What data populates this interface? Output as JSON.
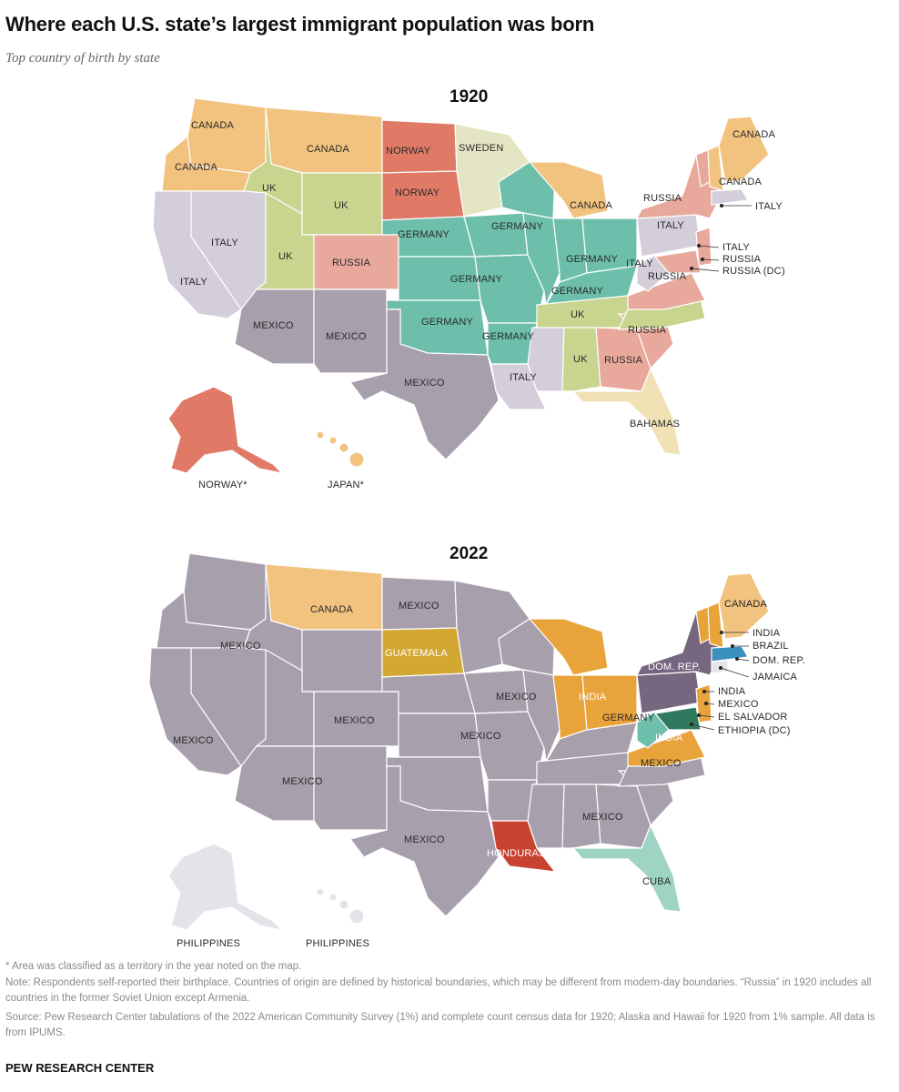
{
  "header": {
    "title": "Where each U.S. state’s largest immigrant population was born",
    "subtitle": "Top country of birth by state"
  },
  "colors": {
    "canada": "#f2c27f",
    "uk": "#c9d48e",
    "germany": "#6dbfab",
    "russia": "#e8a89b",
    "norway": "#e07a67",
    "sweden": "#e4e6c3",
    "italy": "#d3ced9",
    "mexico": "#a89fad",
    "bahamas": "#f0e2b4",
    "japan": "#f2c27f",
    "guatemala": "#d3a832",
    "india": "#e8a33a",
    "brazil": "#3a8fbf",
    "dom_rep": "#77667f",
    "jamaica": "#e3e3ea",
    "el_salvador": "#2f7a5e",
    "ethiopia": "#9ed4b4",
    "honduras": "#c8432f",
    "cuba": "#9fd4c4",
    "philippines": "#e3e3ea"
  },
  "map1920": {
    "year": "1920",
    "labels": {
      "wa": "CANADA",
      "or": "CANADA",
      "mt": "CANADA",
      "id": "UK",
      "wy": "UK",
      "ut": "UK",
      "nv": "ITALY",
      "ca": "ITALY",
      "co": "RUSSIA",
      "nd": "NORWAY",
      "sd": "NORWAY",
      "mn": "SWEDEN",
      "ne": "GERMANY",
      "ia": "GERMANY",
      "ks": "GERMANY",
      "ok": "GERMANY",
      "il": "GERMANY",
      "ar": "GERMANY",
      "oh": "GERMANY",
      "ky": "GERMANY",
      "mi": "CANADA",
      "ny": "ITALY",
      "pa": "RUSSIA",
      "wv": "ITALY",
      "tn": "UK",
      "al": "UK",
      "ga": "RUSSIA",
      "sc": "RUSSIA",
      "nc": "RUSSIA",
      "ms": "ITALY",
      "la": "ITALY",
      "az": "MEXICO",
      "nm": "MEXICO",
      "tx": "MEXICO",
      "fl": "BAHAMAS",
      "me": "CANADA",
      "nh": "CANADA",
      "vt": "RUSSIA",
      "ma_call": "ITALY",
      "nj_call": "ITALY",
      "de_call": "RUSSIA",
      "dc_call": "RUSSIA (DC)",
      "ak": "NORWAY*",
      "hi": "JAPAN*"
    }
  },
  "map2022": {
    "year": "2022",
    "labels": {
      "wa": "MEXICO",
      "ca": "MEXICO",
      "mt": "CANADA",
      "nd": "MEXICO",
      "sd": "GUATEMALA",
      "ut": "MEXICO",
      "co": "MEXICO",
      "az": "MEXICO",
      "tx": "MEXICO",
      "mn": "MEXICO",
      "ks": "MEXICO",
      "la": "HONDURAS",
      "fl": "CUBA",
      "ga": "MEXICO",
      "va": "MEXICO",
      "ny": "DOM. REP.",
      "oh": "INDIA",
      "wv": "GERMANY",
      "nc": "INDIA",
      "me": "CANADA",
      "nh_call": "INDIA",
      "ma_call": "BRAZIL",
      "ri_call": "DOM. REP.",
      "ct_call": "JAMAICA",
      "nj_call": "INDIA",
      "de_call": "MEXICO",
      "md_call": "EL SALVADOR",
      "dc_call": "ETHIOPIA (DC)",
      "ak": "PHILIPPINES",
      "hi": "PHILIPPINES"
    }
  },
  "footnotes": {
    "asterisk": "* Area was classified as a territory in the year noted on the map.",
    "note": "Note: Respondents self-reported their birthplace. Countries of origin are defined by historical boundaries, which may be different from modern-day boundaries. “Russia” in 1920 includes all countries in the former Soviet Union except Armenia.",
    "source": "Source: Pew Research Center tabulations of the 2022 American Community Survey (1%) and complete count census data for 1920; Alaska and Hawaii for 1920 from 1% sample. All data is from IPUMS."
  },
  "brand": "PEW RESEARCH CENTER"
}
